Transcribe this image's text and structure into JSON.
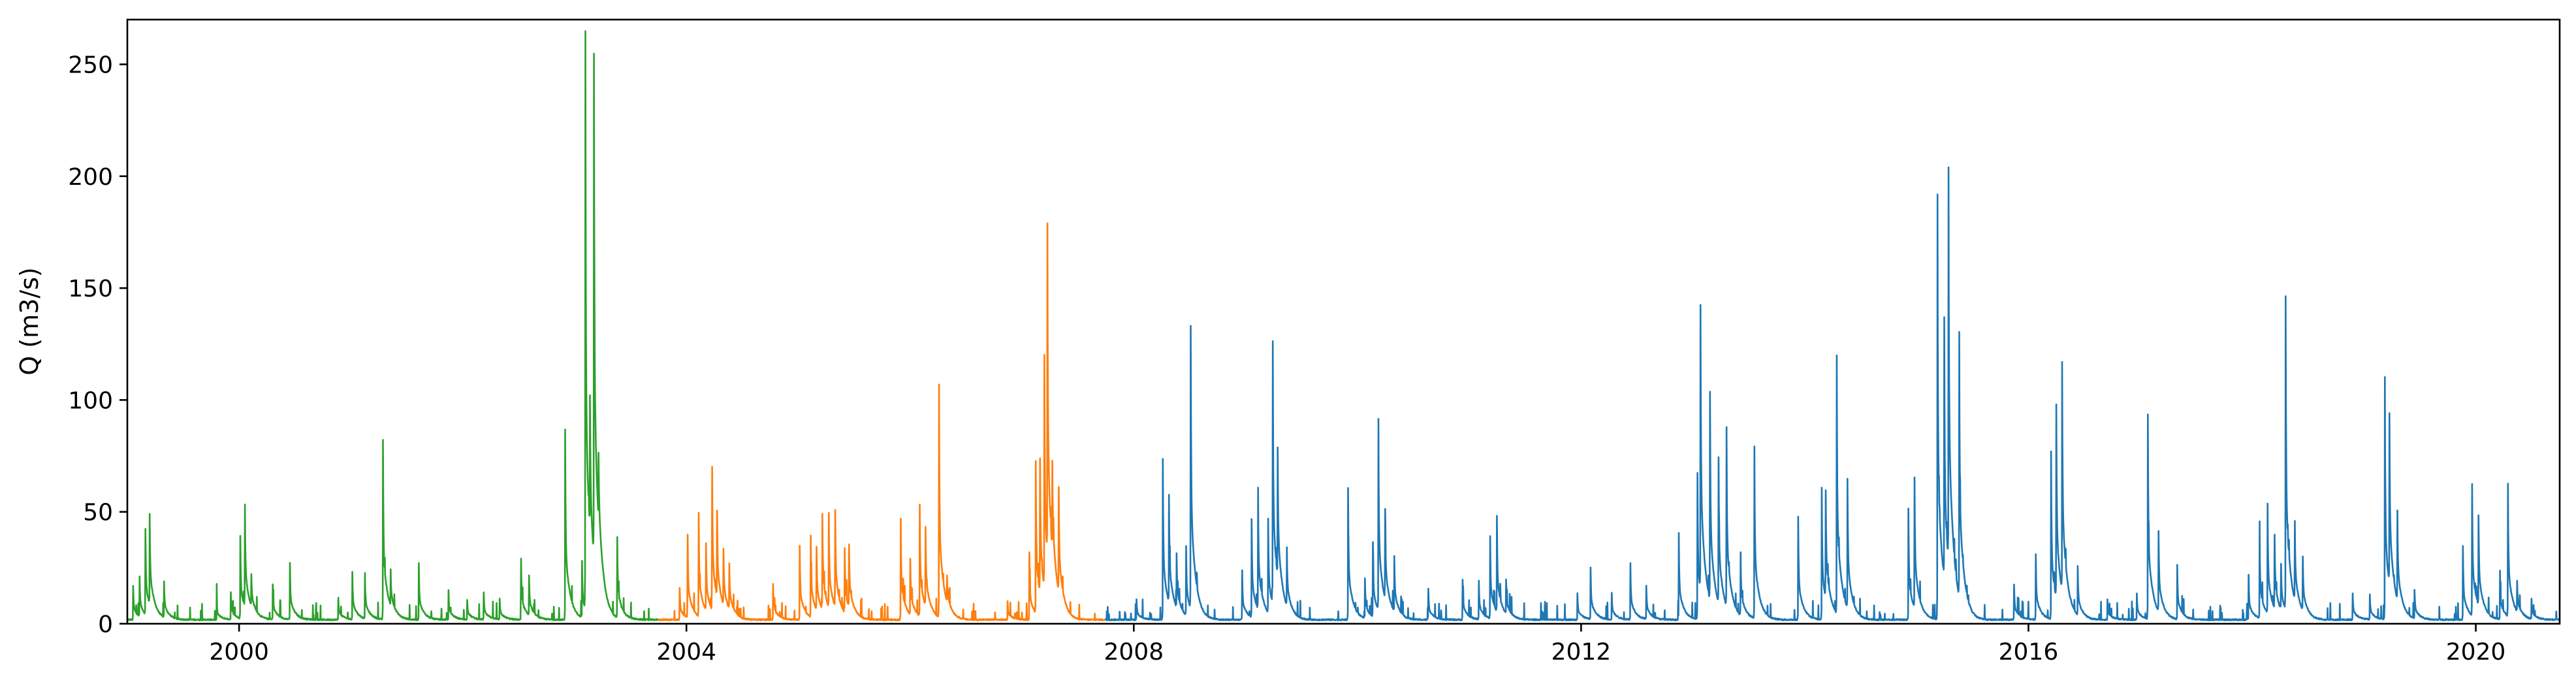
{
  "chart_data": {
    "type": "line",
    "title": "",
    "xlabel": "",
    "ylabel": "Q (m3/s)",
    "x_range": [
      "1999-01-01",
      "2020-10-01"
    ],
    "ylim": [
      0,
      270
    ],
    "x_ticks": [
      "2000",
      "2004",
      "2008",
      "2020",
      "2012",
      "2016"
    ],
    "x_tick_dates": [
      "2000-01-01",
      "2004-01-01",
      "2008-01-01",
      "2020-01-01",
      "2012-01-01",
      "2016-01-01"
    ],
    "y_ticks": [
      0,
      50,
      100,
      150,
      200,
      250
    ],
    "grid": false,
    "legend": "none",
    "colors": {
      "green": "#2ca02c",
      "orange": "#ff7f0e",
      "blue": "#1f77b4"
    },
    "baseflow": 1.5,
    "series": [
      {
        "color": "#2ca02c",
        "start": "1999-01-01",
        "end": "2003-09-30",
        "peaks": [
          [
            "1999-01-20",
            15
          ],
          [
            "1999-02-10",
            18
          ],
          [
            "1999-03-01",
            38
          ],
          [
            "1999-03-15",
            40
          ],
          [
            "1999-05-01",
            16
          ],
          [
            "1999-10-20",
            8
          ],
          [
            "1999-12-05",
            12
          ],
          [
            "2000-01-05",
            37
          ],
          [
            "2000-01-20",
            46
          ],
          [
            "2000-02-10",
            14
          ],
          [
            "2000-04-20",
            16
          ],
          [
            "2000-06-15",
            25
          ],
          [
            "2000-11-20",
            10
          ],
          [
            "2001-01-05",
            21
          ],
          [
            "2001-02-15",
            20
          ],
          [
            "2001-04-15",
            80
          ],
          [
            "2001-05-10",
            16
          ],
          [
            "2001-08-10",
            25
          ],
          [
            "2001-11-15",
            13
          ],
          [
            "2002-01-15",
            9
          ],
          [
            "2002-03-10",
            12
          ],
          [
            "2002-05-01",
            9
          ],
          [
            "2002-07-10",
            27
          ],
          [
            "2002-08-05",
            18
          ],
          [
            "2002-12-01",
            85
          ],
          [
            "2003-01-25",
            25
          ],
          [
            "2003-02-05",
            258
          ],
          [
            "2003-02-20",
            60
          ],
          [
            "2003-03-05",
            225
          ],
          [
            "2003-03-20",
            30
          ],
          [
            "2003-05-20",
            36
          ]
        ]
      },
      {
        "color": "#ff7f0e",
        "start": "2003-10-01",
        "end": "2007-09-30",
        "peaks": [
          [
            "2003-12-10",
            14
          ],
          [
            "2004-01-05",
            37
          ],
          [
            "2004-02-10",
            46
          ],
          [
            "2004-03-05",
            30
          ],
          [
            "2004-03-25",
            64
          ],
          [
            "2004-04-10",
            38
          ],
          [
            "2004-05-01",
            25
          ],
          [
            "2004-05-20",
            20
          ],
          [
            "2004-10-10",
            16
          ],
          [
            "2005-01-05",
            33
          ],
          [
            "2005-02-10",
            36
          ],
          [
            "2005-03-01",
            28
          ],
          [
            "2005-03-20",
            43
          ],
          [
            "2005-04-10",
            42
          ],
          [
            "2005-05-01",
            43
          ],
          [
            "2005-06-01",
            29
          ],
          [
            "2005-06-15",
            28
          ],
          [
            "2005-12-01",
            45
          ],
          [
            "2006-01-01",
            25
          ],
          [
            "2006-02-01",
            50
          ],
          [
            "2006-02-20",
            35
          ],
          [
            "2006-04-05",
            104
          ],
          [
            "2006-05-01",
            12
          ],
          [
            "2006-11-15",
            8
          ],
          [
            "2007-01-25",
            30
          ],
          [
            "2007-02-15",
            68
          ],
          [
            "2007-03-01",
            60
          ],
          [
            "2007-03-15",
            104
          ],
          [
            "2007-03-25",
            148
          ],
          [
            "2007-04-10",
            40
          ],
          [
            "2007-05-01",
            47
          ]
        ]
      },
      {
        "color": "#1f77b4",
        "start": "2007-10-01",
        "end": "2020-10-01",
        "peaks": [
          [
            "2008-01-10",
            9
          ],
          [
            "2008-04-05",
            72
          ],
          [
            "2008-04-25",
            48
          ],
          [
            "2008-05-20",
            24
          ],
          [
            "2008-06-20",
            31
          ],
          [
            "2008-07-05",
            126
          ],
          [
            "2008-12-20",
            22
          ],
          [
            "2009-01-20",
            44
          ],
          [
            "2009-02-10",
            54
          ],
          [
            "2009-03-15",
            42
          ],
          [
            "2009-03-30",
            117
          ],
          [
            "2009-04-15",
            58
          ],
          [
            "2009-05-15",
            26
          ],
          [
            "2009-12-01",
            59
          ],
          [
            "2010-01-25",
            18
          ],
          [
            "2010-02-20",
            33
          ],
          [
            "2010-03-10",
            85
          ],
          [
            "2010-04-01",
            40
          ],
          [
            "2010-05-01",
            25
          ],
          [
            "2010-08-20",
            14
          ],
          [
            "2010-12-10",
            18
          ],
          [
            "2011-02-01",
            17
          ],
          [
            "2011-03-10",
            37
          ],
          [
            "2011-04-01",
            40
          ],
          [
            "2011-05-01",
            15
          ],
          [
            "2011-12-20",
            12
          ],
          [
            "2012-02-01",
            23
          ],
          [
            "2012-04-10",
            12
          ],
          [
            "2012-06-10",
            25
          ],
          [
            "2012-08-01",
            15
          ],
          [
            "2012-11-15",
            39
          ],
          [
            "2013-01-15",
            65
          ],
          [
            "2013-01-25",
            127
          ],
          [
            "2013-02-25",
            93
          ],
          [
            "2013-03-25",
            65
          ],
          [
            "2013-04-20",
            80
          ],
          [
            "2013-06-05",
            28
          ],
          [
            "2013-07-20",
            77
          ],
          [
            "2013-12-10",
            46
          ],
          [
            "2014-02-25",
            59
          ],
          [
            "2014-03-10",
            48
          ],
          [
            "2014-04-15",
            115
          ],
          [
            "2014-05-20",
            58
          ],
          [
            "2014-12-05",
            50
          ],
          [
            "2014-12-25",
            58
          ],
          [
            "2015-03-10",
            190
          ],
          [
            "2015-04-01",
            117
          ],
          [
            "2015-04-15",
            176
          ],
          [
            "2015-05-20",
            118
          ],
          [
            "2015-11-15",
            16
          ],
          [
            "2016-01-25",
            29
          ],
          [
            "2016-03-15",
            75
          ],
          [
            "2016-04-01",
            86
          ],
          [
            "2016-04-20",
            102
          ],
          [
            "2016-06-10",
            22
          ],
          [
            "2016-09-15",
            9
          ],
          [
            "2016-12-20",
            12
          ],
          [
            "2017-01-25",
            91
          ],
          [
            "2017-03-01",
            36
          ],
          [
            "2017-05-01",
            24
          ],
          [
            "2017-12-20",
            20
          ],
          [
            "2018-01-25",
            38
          ],
          [
            "2018-02-20",
            49
          ],
          [
            "2018-03-15",
            33
          ],
          [
            "2018-04-05",
            20
          ],
          [
            "2018-04-20",
            140
          ],
          [
            "2018-05-20",
            35
          ],
          [
            "2018-06-15",
            24
          ],
          [
            "2018-11-25",
            12
          ],
          [
            "2019-01-20",
            11
          ],
          [
            "2019-03-10",
            108
          ],
          [
            "2019-03-25",
            76
          ],
          [
            "2019-04-20",
            40
          ],
          [
            "2019-06-15",
            13
          ],
          [
            "2019-11-20",
            33
          ],
          [
            "2019-12-20",
            59
          ],
          [
            "2020-01-10",
            40
          ],
          [
            "2020-03-20",
            22
          ],
          [
            "2020-04-15",
            59
          ],
          [
            "2020-05-15",
            14
          ],
          [
            "2020-07-01",
            9
          ]
        ]
      }
    ]
  }
}
